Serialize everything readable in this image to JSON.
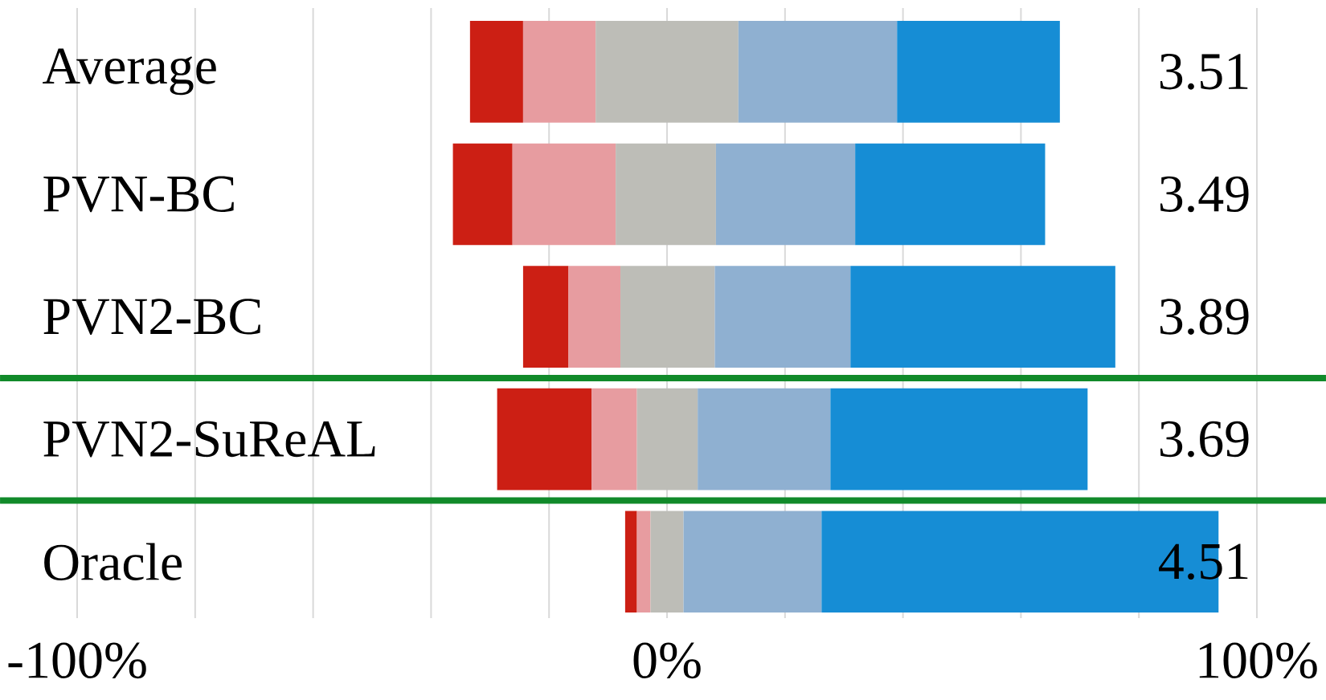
{
  "chart_data": {
    "type": "bar",
    "orientation": "horizontal",
    "categories": [
      "Average",
      "PVN-BC",
      "PVN2-BC",
      "PVN2-SuReAL",
      "Oracle"
    ],
    "series": [
      {
        "color": "#cc1f14",
        "base": [
          -33.4,
          -36.3,
          -24.4,
          -28.8,
          -7.1
        ],
        "values": [
          9.0,
          10.1,
          7.7,
          16.0,
          2.0
        ]
      },
      {
        "color": "#e79ca0",
        "base": [
          -24.4,
          -26.2,
          -16.7,
          -12.8,
          -5.1
        ],
        "values": [
          12.3,
          17.5,
          8.8,
          7.7,
          2.3
        ]
      },
      {
        "color": "#bdbdb7",
        "base": [
          -12.1,
          -8.7,
          -7.9,
          -5.1,
          -2.8
        ],
        "values": [
          24.2,
          17.0,
          16.0,
          10.3,
          5.6
        ]
      },
      {
        "color": "#8fb0d1",
        "base": [
          12.1,
          8.3,
          8.1,
          5.2,
          2.8
        ],
        "values": [
          26.9,
          23.6,
          23.0,
          22.5,
          23.4
        ]
      },
      {
        "color": "#168dd5",
        "base": [
          39.0,
          31.9,
          31.1,
          27.7,
          26.2
        ],
        "values": [
          27.6,
          32.2,
          44.9,
          43.6,
          67.3
        ]
      }
    ],
    "xlim": [
      -100,
      100
    ],
    "xticks": [
      {
        "value": -100,
        "label": "-100%"
      },
      {
        "value": -80,
        "label": null
      },
      {
        "value": -60,
        "label": null
      },
      {
        "value": -40,
        "label": null
      },
      {
        "value": -20,
        "label": null
      },
      {
        "value": 0,
        "label": "0%"
      },
      {
        "value": 20,
        "label": null
      },
      {
        "value": 40,
        "label": null
      },
      {
        "value": 60,
        "label": null
      },
      {
        "value": 80,
        "label": null
      },
      {
        "value": 100,
        "label": "100%"
      }
    ],
    "grid": "x",
    "annotations": [
      "3.51",
      "3.49",
      "3.89",
      "3.69",
      "4.51"
    ]
  }
}
